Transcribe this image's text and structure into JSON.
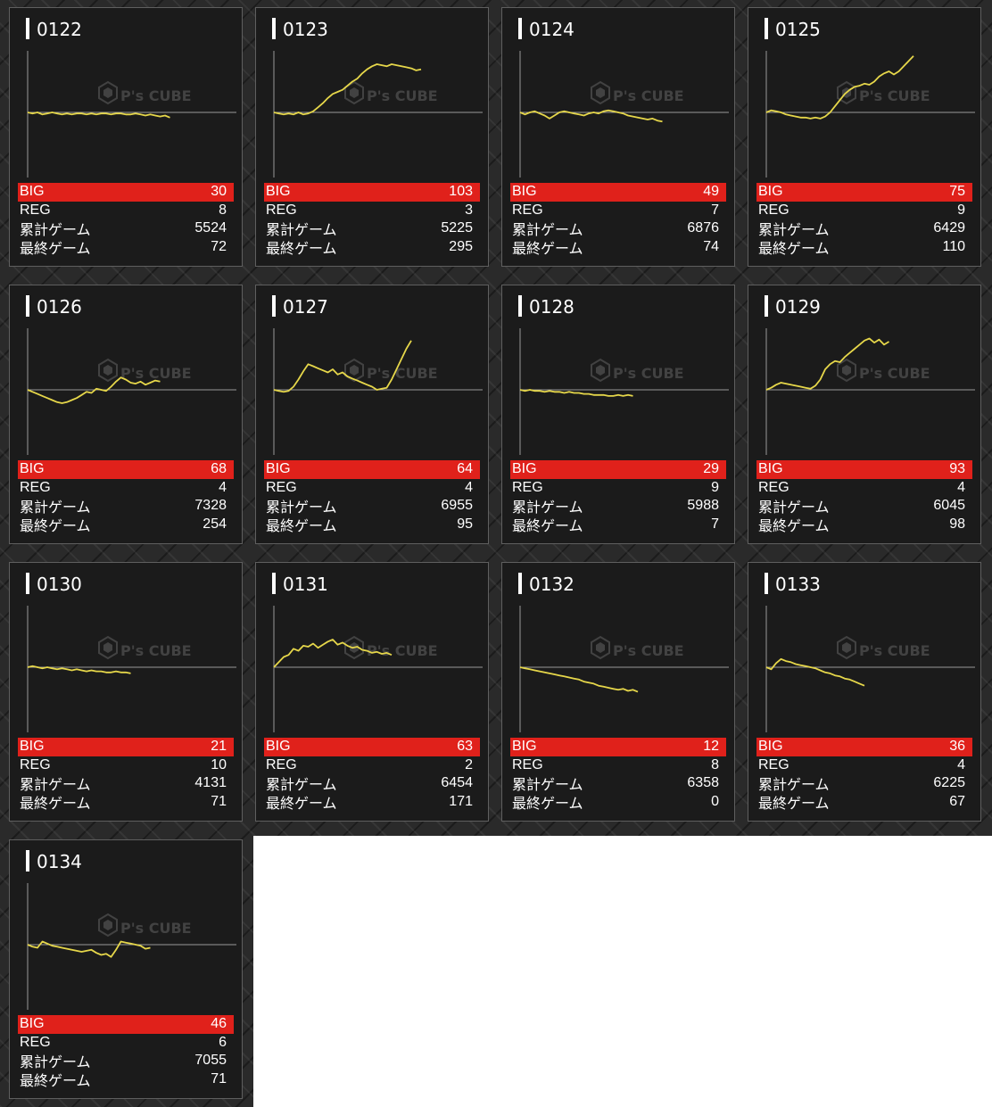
{
  "labels": {
    "big": "BIG",
    "reg": "REG",
    "total": "累計ゲーム",
    "last": "最終ゲーム"
  },
  "watermark": {
    "brand": "P's CUBE"
  },
  "colors": {
    "big_bar": "#e0211b",
    "graph_line": "#e6d74a",
    "card_bg": "#1b1b1b"
  },
  "machines": [
    {
      "id": "0122",
      "big": "30",
      "reg": "8",
      "total": "5524",
      "last": "72",
      "trend": [
        0,
        -1,
        0,
        -2,
        -1,
        0,
        -1,
        -2,
        -1,
        -2,
        -1,
        -1,
        -2,
        -1,
        -2,
        -1,
        -1,
        -2,
        -1,
        -1,
        -2,
        -2,
        -1,
        -2,
        -3,
        -2,
        -3,
        -4,
        -3,
        -5
      ]
    },
    {
      "id": "0123",
      "big": "103",
      "reg": "3",
      "total": "5225",
      "last": "295",
      "trend": [
        0,
        -1,
        -2,
        -1,
        -2,
        0,
        -2,
        -1,
        1,
        5,
        9,
        14,
        18,
        20,
        22,
        26,
        30,
        33,
        38,
        42,
        45,
        47,
        46,
        45,
        47,
        46,
        45,
        44,
        43,
        41,
        42
      ]
    },
    {
      "id": "0124",
      "big": "49",
      "reg": "7",
      "total": "6876",
      "last": "74",
      "trend": [
        0,
        -2,
        0,
        1,
        -1,
        -3,
        -6,
        -3,
        0,
        1,
        0,
        -1,
        -2,
        -3,
        -1,
        0,
        -1,
        1,
        2,
        1,
        0,
        -1,
        -3,
        -4,
        -5,
        -6,
        -7,
        -6,
        -8,
        -9
      ]
    },
    {
      "id": "0125",
      "big": "75",
      "reg": "9",
      "total": "6429",
      "last": "110",
      "trend": [
        0,
        2,
        1,
        0,
        -2,
        -3,
        -4,
        -5,
        -5,
        -6,
        -5,
        -6,
        -4,
        0,
        6,
        12,
        18,
        22,
        25,
        26,
        28,
        27,
        30,
        35,
        38,
        40,
        37,
        40,
        45,
        50,
        55
      ]
    },
    {
      "id": "0126",
      "big": "68",
      "reg": "4",
      "total": "7328",
      "last": "254",
      "trend": [
        0,
        -2,
        -4,
        -6,
        -8,
        -10,
        -12,
        -13,
        -12,
        -10,
        -8,
        -5,
        -2,
        -3,
        1,
        0,
        -1,
        3,
        8,
        12,
        10,
        7,
        6,
        8,
        5,
        7,
        9,
        8
      ]
    },
    {
      "id": "0127",
      "big": "64",
      "reg": "4",
      "total": "6955",
      "last": "95",
      "trend": [
        0,
        -1,
        -2,
        -1,
        3,
        10,
        18,
        25,
        23,
        21,
        19,
        17,
        20,
        15,
        17,
        13,
        11,
        9,
        7,
        5,
        3,
        0,
        1,
        2,
        10,
        20,
        30,
        40,
        48
      ]
    },
    {
      "id": "0128",
      "big": "29",
      "reg": "9",
      "total": "5988",
      "last": "7",
      "trend": [
        0,
        -1,
        0,
        -1,
        -1,
        -2,
        -1,
        -2,
        -2,
        -3,
        -2,
        -3,
        -3,
        -4,
        -4,
        -5,
        -5,
        -5,
        -6,
        -6,
        -5,
        -6,
        -5,
        -6
      ]
    },
    {
      "id": "0129",
      "big": "93",
      "reg": "4",
      "total": "6045",
      "last": "98",
      "trend": [
        0,
        2,
        5,
        7,
        6,
        5,
        4,
        3,
        2,
        1,
        4,
        10,
        20,
        25,
        28,
        27,
        32,
        36,
        40,
        44,
        48,
        50,
        46,
        49,
        44,
        47
      ]
    },
    {
      "id": "0130",
      "big": "21",
      "reg": "10",
      "total": "4131",
      "last": "71",
      "trend": [
        0,
        1,
        0,
        -1,
        0,
        -1,
        -2,
        -1,
        -2,
        -3,
        -2,
        -3,
        -4,
        -3,
        -4,
        -4,
        -5,
        -5,
        -4,
        -5,
        -5,
        -6
      ]
    },
    {
      "id": "0131",
      "big": "63",
      "reg": "2",
      "total": "6454",
      "last": "171",
      "trend": [
        0,
        5,
        10,
        12,
        18,
        16,
        21,
        20,
        23,
        19,
        22,
        25,
        27,
        22,
        24,
        21,
        19,
        20,
        17,
        16,
        14,
        15,
        13,
        14,
        12
      ]
    },
    {
      "id": "0132",
      "big": "12",
      "reg": "8",
      "total": "6358",
      "last": "0",
      "trend": [
        0,
        -1,
        -2,
        -3,
        -4,
        -5,
        -6,
        -7,
        -8,
        -9,
        -10,
        -11,
        -12,
        -14,
        -15,
        -16,
        -18,
        -19,
        -20,
        -21,
        -22,
        -21,
        -23,
        -22,
        -24
      ]
    },
    {
      "id": "0133",
      "big": "36",
      "reg": "4",
      "total": "6225",
      "last": "67",
      "trend": [
        0,
        -2,
        4,
        8,
        6,
        5,
        3,
        2,
        1,
        0,
        -1,
        -3,
        -5,
        -6,
        -8,
        -9,
        -11,
        -12,
        -14,
        -16,
        -18
      ]
    },
    {
      "id": "0134",
      "big": "46",
      "reg": "6",
      "total": "7055",
      "last": "71",
      "trend": [
        0,
        -2,
        -3,
        3,
        1,
        -1,
        -2,
        -3,
        -4,
        -5,
        -6,
        -7,
        -6,
        -5,
        -8,
        -10,
        -9,
        -12,
        -5,
        3,
        2,
        1,
        0,
        -1,
        -4,
        -3
      ]
    }
  ]
}
